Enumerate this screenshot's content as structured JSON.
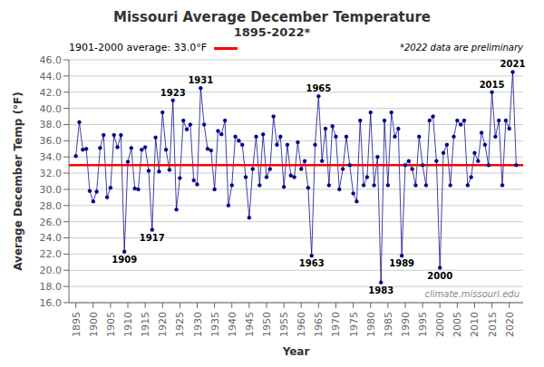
{
  "chart_data": {
    "type": "line",
    "title": "Missouri Average December Temperature",
    "subtitle": "1895-2022*",
    "x_label": "Year",
    "y_label": "Average December Temp (°F)",
    "x": [
      1895,
      1896,
      1897,
      1898,
      1899,
      1900,
      1901,
      1902,
      1903,
      1904,
      1905,
      1906,
      1907,
      1908,
      1909,
      1910,
      1911,
      1912,
      1913,
      1914,
      1915,
      1916,
      1917,
      1918,
      1919,
      1920,
      1921,
      1922,
      1923,
      1924,
      1925,
      1926,
      1927,
      1928,
      1929,
      1930,
      1931,
      1932,
      1933,
      1934,
      1935,
      1936,
      1937,
      1938,
      1939,
      1940,
      1941,
      1942,
      1943,
      1944,
      1945,
      1946,
      1947,
      1948,
      1949,
      1950,
      1951,
      1952,
      1953,
      1954,
      1955,
      1956,
      1957,
      1958,
      1959,
      1960,
      1961,
      1962,
      1963,
      1964,
      1965,
      1966,
      1967,
      1968,
      1969,
      1970,
      1971,
      1972,
      1973,
      1974,
      1975,
      1976,
      1977,
      1978,
      1979,
      1980,
      1981,
      1982,
      1983,
      1984,
      1985,
      1986,
      1987,
      1988,
      1989,
      1990,
      1991,
      1992,
      1993,
      1994,
      1995,
      1996,
      1997,
      1998,
      1999,
      2000,
      2001,
      2002,
      2003,
      2004,
      2005,
      2006,
      2007,
      2008,
      2009,
      2010,
      2011,
      2012,
      2013,
      2014,
      2015,
      2016,
      2017,
      2018,
      2019,
      2020,
      2021,
      2022
    ],
    "values": [
      34.1,
      38.3,
      34.9,
      35.0,
      29.8,
      28.5,
      29.7,
      35.1,
      36.7,
      29.0,
      30.2,
      36.7,
      35.2,
      36.7,
      22.3,
      33.4,
      35.1,
      30.1,
      30.0,
      34.9,
      35.2,
      32.3,
      25.0,
      36.4,
      32.2,
      39.5,
      34.9,
      32.4,
      41.0,
      27.5,
      31.4,
      38.5,
      37.4,
      38.0,
      31.1,
      30.6,
      42.5,
      38.0,
      35.0,
      34.8,
      30.0,
      37.2,
      36.8,
      38.5,
      28.0,
      30.5,
      36.5,
      36.0,
      35.5,
      31.5,
      26.5,
      32.5,
      36.5,
      30.5,
      36.8,
      31.5,
      32.5,
      39.0,
      35.5,
      36.5,
      30.3,
      35.5,
      31.7,
      31.5,
      35.8,
      32.5,
      33.5,
      30.2,
      21.8,
      35.5,
      41.5,
      33.5,
      37.5,
      30.5,
      37.8,
      36.5,
      30.0,
      32.5,
      36.5,
      33.0,
      29.5,
      28.5,
      38.5,
      30.5,
      31.5,
      39.5,
      30.5,
      34.0,
      18.5,
      38.5,
      30.5,
      39.5,
      36.5,
      37.5,
      21.8,
      33.0,
      33.5,
      32.5,
      30.5,
      36.5,
      33.0,
      30.5,
      38.5,
      39.0,
      33.5,
      20.3,
      34.5,
      35.5,
      30.5,
      36.5,
      38.5,
      38.0,
      38.5,
      30.5,
      31.5,
      34.5,
      33.5,
      37.0,
      35.5,
      33.0,
      42.0,
      36.5,
      38.5,
      30.5,
      38.5,
      37.5,
      44.5,
      33.0
    ],
    "color": "#00008B",
    "marker": "circle",
    "xlim": [
      1893,
      2024
    ],
    "xticks": [
      1895,
      1900,
      1905,
      1910,
      1915,
      1920,
      1925,
      1930,
      1935,
      1940,
      1945,
      1950,
      1955,
      1960,
      1965,
      1970,
      1975,
      1980,
      1985,
      1990,
      1995,
      2000,
      2005,
      2010,
      2015,
      2020
    ],
    "ylim": [
      16.0,
      46.0
    ],
    "yticks": [
      {
        "value": 16.0,
        "label": "16.0"
      },
      {
        "value": 18.0,
        "label": "18.0"
      },
      {
        "value": 20.0,
        "label": "20.0"
      },
      {
        "value": 22.0,
        "label": "22.0"
      },
      {
        "value": 24.0,
        "label": "24.0"
      },
      {
        "value": 26.0,
        "label": "26.0"
      },
      {
        "value": 28.0,
        "label": "28.0"
      },
      {
        "value": 30.0,
        "label": "30.0"
      },
      {
        "value": 32.0,
        "label": "32.0"
      },
      {
        "value": 34.0,
        "label": "34.0"
      },
      {
        "value": 36.0,
        "label": "36.0"
      },
      {
        "value": 38.0,
        "label": "38.0"
      },
      {
        "value": 40.0,
        "label": "40.0"
      },
      {
        "value": 42.0,
        "label": "42.0"
      },
      {
        "value": 44.0,
        "label": "44.0"
      },
      {
        "value": 46.0,
        "label": "46.0"
      }
    ],
    "grid": "y",
    "reference_line": {
      "y": 33.0,
      "label": "1901-2000 average: 33.0°F",
      "color": "#FF0000"
    },
    "annotations": [
      {
        "text": "*2022 data are preliminary"
      },
      {
        "text": "climate.missouri.edu"
      }
    ],
    "point_labels": [
      {
        "x": 1909,
        "y": 22.3,
        "text": "1909"
      },
      {
        "x": 1917,
        "y": 25.0,
        "text": "1917"
      },
      {
        "x": 1923,
        "y": 41.0,
        "text": "1923"
      },
      {
        "x": 1931,
        "y": 42.5,
        "text": "1931"
      },
      {
        "x": 1963,
        "y": 21.8,
        "text": "1963"
      },
      {
        "x": 1965,
        "y": 41.5,
        "text": "1965"
      },
      {
        "x": 1983,
        "y": 18.5,
        "text": "1983"
      },
      {
        "x": 1989,
        "y": 21.8,
        "text": "1989"
      },
      {
        "x": 2000,
        "y": 20.3,
        "text": "2000"
      },
      {
        "x": 2015,
        "y": 42.0,
        "text": "2015"
      },
      {
        "x": 2021,
        "y": 44.5,
        "text": "2021"
      }
    ]
  }
}
